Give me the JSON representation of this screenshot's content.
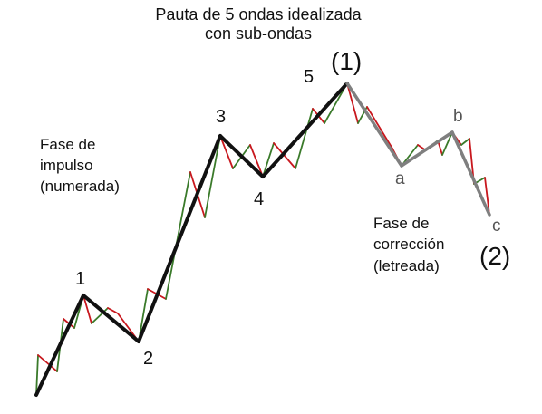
{
  "title": {
    "line1": "Pauta de 5 ondas idealizada",
    "line2": "con sub-ondas"
  },
  "impulse_phase": {
    "line1": "Fase de",
    "line2": "impulso",
    "line3": "(numerada)"
  },
  "correction_phase": {
    "line1": "Fase de",
    "line2": "corrección",
    "line3": "(letreada)"
  },
  "wave_labels": {
    "w1": "1",
    "w2": "2",
    "w3": "3",
    "w4": "4",
    "w5": "5",
    "wa": "a",
    "wb": "b",
    "wc": "c",
    "big1": "(1)",
    "big2": "(2)"
  },
  "colors": {
    "impulse_line": "#111111",
    "correction_line": "#7f7f7f",
    "up_subwave": "#3a7a2a",
    "down_subwave": "#c8181e"
  }
}
